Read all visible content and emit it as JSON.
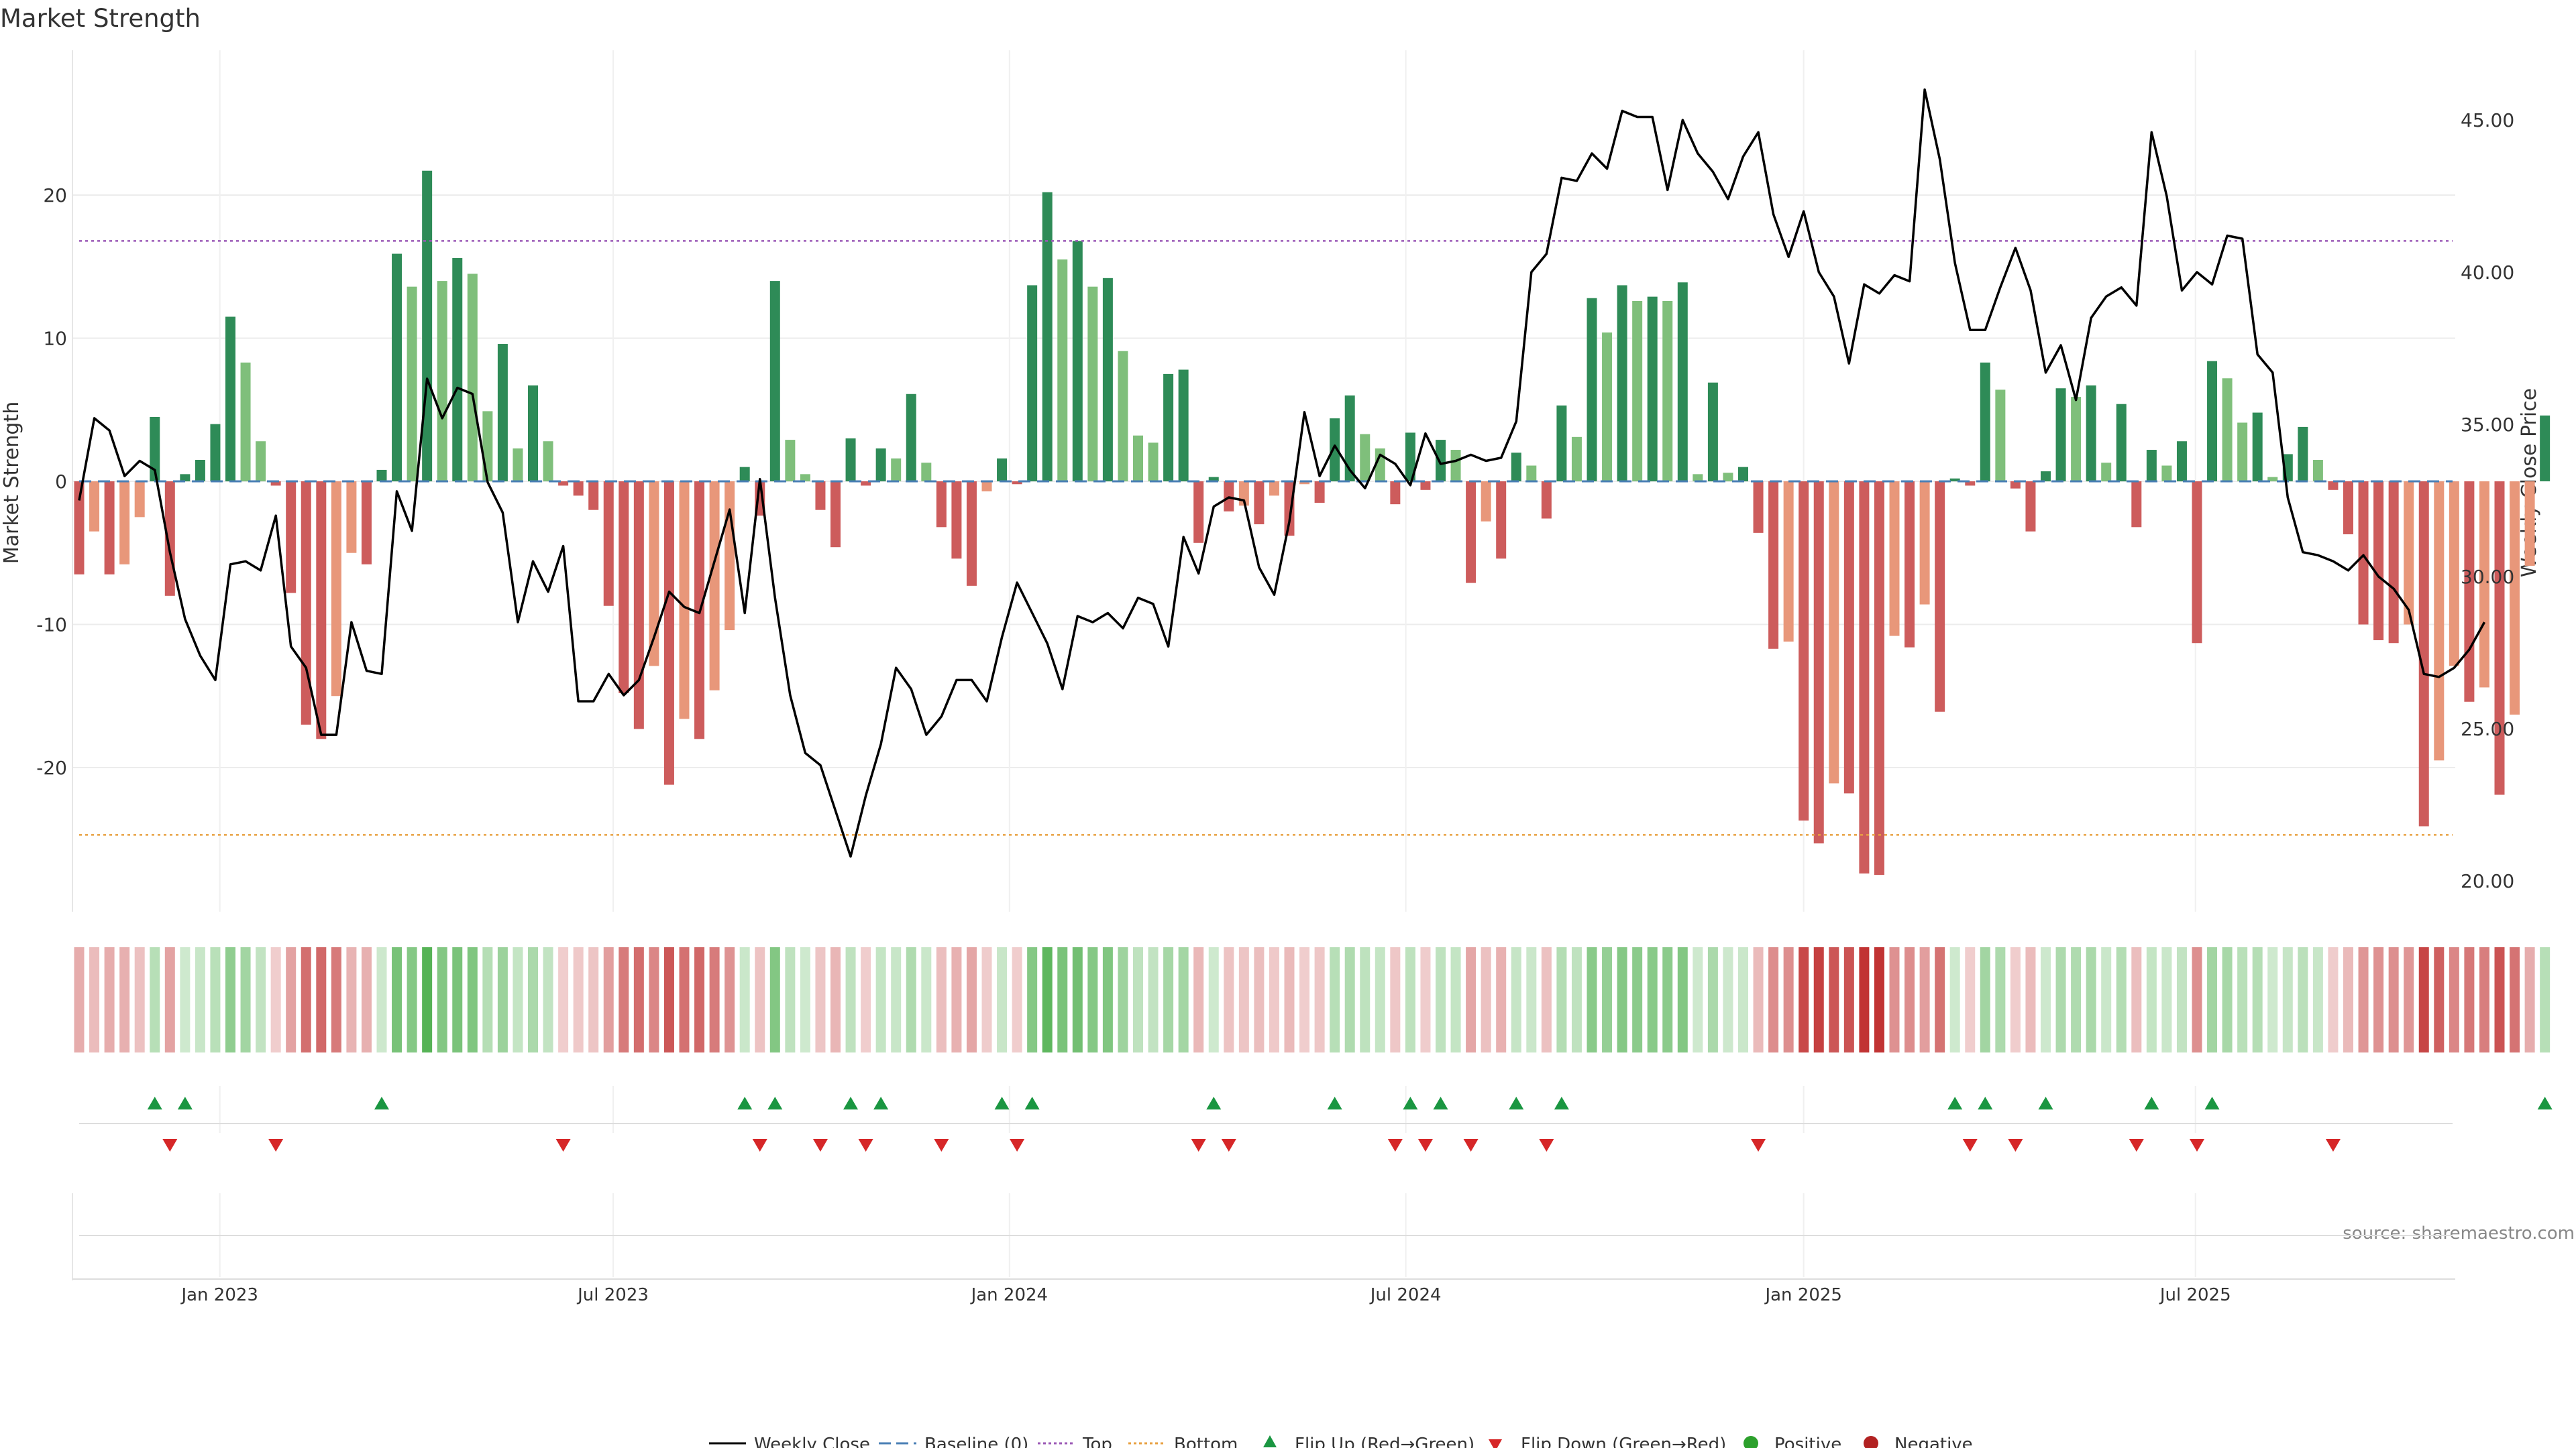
{
  "chart_data": {
    "type": "bar+line",
    "title": "Market Strength",
    "ylabel_left": "Market Strength",
    "ylabel_right": "Weekly Close Price",
    "source": "source: sharemaestro.com",
    "ylim_left": [
      -30,
      30
    ],
    "ylim_right": [
      20.0,
      47.5
    ],
    "left_ticks": [
      "20",
      "10",
      "0",
      "-10",
      "-20"
    ],
    "left_tick_values": [
      20,
      10,
      0,
      -10,
      -20
    ],
    "right_ticks": [
      "45.00",
      "40.00",
      "35.00",
      "30.00",
      "25.00",
      "20.00"
    ],
    "right_tick_values": [
      45,
      40,
      35,
      30,
      25,
      20
    ],
    "x_tick_labels": [
      "Jan 2023",
      "Jul 2023",
      "Jan 2024",
      "Jul 2024",
      "Jan 2025",
      "Jul 2025"
    ],
    "x_tick_weeks": [
      9.3,
      35.3,
      61.5,
      87.7,
      114.0,
      139.9
    ],
    "top_line": 16.8,
    "bottom_line": -24.7,
    "colors": {
      "strong_green": "#2e8b57",
      "light_green": "#7fbf7b",
      "strong_red": "#cd5c5c",
      "light_red": "#e8977a",
      "top": "#9b59b6",
      "bottom": "#e8a040",
      "baseline": "#4a7fb5",
      "flip_up": "#1a9641",
      "flip_down": "#d62728",
      "positive": "#2ca02c",
      "negative": "#b22222"
    },
    "strength": [
      -6.5,
      -3.5,
      -6.5,
      -5.8,
      -2.5,
      4.5,
      -8,
      0.5,
      1.5,
      4,
      11.5,
      8.3,
      2.8,
      -0.3,
      -7.8,
      -17,
      -18,
      -15,
      -5,
      -5.8,
      0.8,
      15.9,
      13.6,
      21.7,
      14,
      15.6,
      14.5,
      4.9,
      9.6,
      2.3,
      6.7,
      2.8,
      -0.3,
      -1,
      -2,
      -8.7,
      -14.8,
      -17.3,
      -12.9,
      -21.2,
      -16.6,
      -18,
      -14.6,
      -10.4,
      1,
      -2.4,
      14,
      2.9,
      0.5,
      -2,
      -4.6,
      3,
      -0.3,
      2.3,
      1.6,
      6.1,
      1.3,
      -3.2,
      -5.4,
      -7.3,
      -0.7,
      1.6,
      -0.2,
      13.7,
      20.2,
      15.5,
      16.8,
      13.6,
      14.2,
      9.1,
      3.2,
      2.7,
      7.5,
      7.8,
      -4.3,
      0.3,
      -2.1,
      -1.7,
      -3,
      -1,
      -3.8,
      -0.2,
      -1.5,
      4.4,
      6,
      3.3,
      2.3,
      -1.6,
      3.4,
      -0.6,
      2.9,
      2.2,
      -7.1,
      -2.8,
      -5.4,
      2,
      1.1,
      -2.6,
      5.3,
      3.1,
      12.8,
      10.4,
      13.7,
      12.6,
      12.9,
      12.6,
      13.9,
      0.5,
      6.9,
      0.6,
      1,
      -3.6,
      -11.7,
      -11.2,
      -23.7,
      -25.3,
      -21.1,
      -21.8,
      -27.4,
      -27.5,
      -10.8,
      -11.6,
      -8.6,
      -16.1,
      0.2,
      -0.3,
      8.3,
      6.4,
      -0.5,
      -3.5,
      0.7,
      6.5,
      5.9,
      6.7,
      1.3,
      5.4,
      -3.2,
      2.2,
      1.1,
      2.8,
      -11.3,
      8.4,
      7.2,
      4.1,
      4.8,
      0.3,
      1.9,
      3.8,
      1.5,
      -0.6,
      -3.7,
      -10,
      -11.1,
      -11.3,
      -10,
      -24.1,
      -19.5,
      -12.9,
      -15.4,
      -14.4,
      -21.9,
      -16.3,
      -5.9,
      4.6
    ],
    "close": [
      32.5,
      35.2,
      34.8,
      33.3,
      33.8,
      33.5,
      30.8,
      28.6,
      27.4,
      26.6,
      30.4,
      30.5,
      30.2,
      32.0,
      27.7,
      27.0,
      24.8,
      24.8,
      28.5,
      26.9,
      26.8,
      32.8,
      31.5,
      36.5,
      35.2,
      36.2,
      36.0,
      33.1,
      32.1,
      28.5,
      30.5,
      29.5,
      31.0,
      25.9,
      25.9,
      26.8,
      26.1,
      26.6,
      28.0,
      29.5,
      29.0,
      28.8,
      30.5,
      32.2,
      28.8,
      33.2,
      29.3,
      26.1,
      24.2,
      23.8,
      22.3,
      20.8,
      22.8,
      24.5,
      27.0,
      26.3,
      24.8,
      25.4,
      26.6,
      26.6,
      25.9,
      28.0,
      29.8,
      28.8,
      27.8,
      26.3,
      28.7,
      28.5,
      28.8,
      28.3,
      29.3,
      29.1,
      27.7,
      31.3,
      30.1,
      32.3,
      32.6,
      32.5,
      30.3,
      29.4,
      31.8,
      35.4,
      33.3,
      34.3,
      33.5,
      32.9,
      34.0,
      33.7,
      33.0,
      34.7,
      33.7,
      33.8,
      34.0,
      33.8,
      33.9,
      35.1,
      40.0,
      40.6,
      43.1,
      43.0,
      43.9,
      43.4,
      45.3,
      45.1,
      45.1,
      42.7,
      45.0,
      43.9,
      43.3,
      42.4,
      43.8,
      44.6,
      41.9,
      40.5,
      42.0,
      40.0,
      39.2,
      37.0,
      39.6,
      39.3,
      39.9,
      39.7,
      46.0,
      43.7,
      40.3,
      38.1,
      38.1,
      39.5,
      40.8,
      39.4,
      36.7,
      37.6,
      35.8,
      38.5,
      39.2,
      39.5,
      38.9,
      44.6,
      42.5,
      39.4,
      40.0,
      39.6,
      41.2,
      41.1,
      37.3,
      36.7,
      32.6,
      30.8,
      30.7,
      30.5,
      30.2,
      30.7,
      30.0,
      29.6,
      28.9,
      26.8,
      26.7,
      27.0,
      27.6,
      28.5
    ]
  },
  "legend": {
    "weekly_close": "Weekly Close",
    "baseline": "Baseline (0)",
    "top": "Top",
    "bottom": "Bottom",
    "flip_up": "Flip Up (Red→Green)",
    "flip_down": "Flip Down (Green→Red)",
    "positive": "Positive",
    "negative": "Negative"
  }
}
